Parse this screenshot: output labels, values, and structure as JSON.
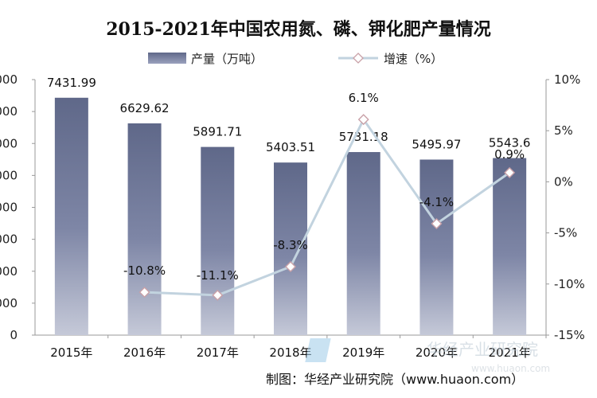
{
  "chart_data": {
    "type": "bar",
    "title": "2015-2021年中国农用氮、磷、钾化肥产量情况",
    "categories": [
      "2015年",
      "2016年",
      "2017年",
      "2018年",
      "2019年",
      "2020年",
      "2021年"
    ],
    "series": [
      {
        "name": "产量（万吨）",
        "type": "bar",
        "axis": "left",
        "values": [
          7431.99,
          6629.62,
          5891.71,
          5403.51,
          5731.18,
          5495.97,
          5543.6
        ],
        "labels": [
          "7431.99",
          "6629.62",
          "5891.71",
          "5403.51",
          "5731.18",
          "5495.97",
          "5543.6"
        ]
      },
      {
        "name": "增速（%）",
        "type": "line",
        "axis": "right",
        "values": [
          null,
          -10.8,
          -11.1,
          -8.3,
          6.1,
          -4.1,
          0.9
        ],
        "labels": [
          "",
          "-10.8%",
          "-11.1%",
          "-8.3%",
          "6.1%",
          "-4.1%",
          "0.9%"
        ]
      }
    ],
    "y_left": {
      "ylim": [
        0,
        8000
      ],
      "ticks": [
        "000",
        "000",
        "000",
        "000",
        "000",
        "000",
        "000",
        "000",
        "0"
      ]
    },
    "y_right": {
      "ylim": [
        -15,
        10
      ],
      "ticks": [
        "10%",
        "5%",
        "0%",
        "-5%",
        "-10%",
        "-15%"
      ]
    },
    "legend_position": "top-center",
    "grid": false,
    "colors": {
      "bar": "#6f7798",
      "line": "#c2d3df",
      "marker_fill": "#ffffff",
      "marker_stroke": "#c9a1a8",
      "text": "#111111"
    }
  },
  "source_note": "制图：华经产业研究院（www.huaon.com）",
  "watermark": {
    "name": "华经产业研究院",
    "url": "www.huaon.com"
  }
}
